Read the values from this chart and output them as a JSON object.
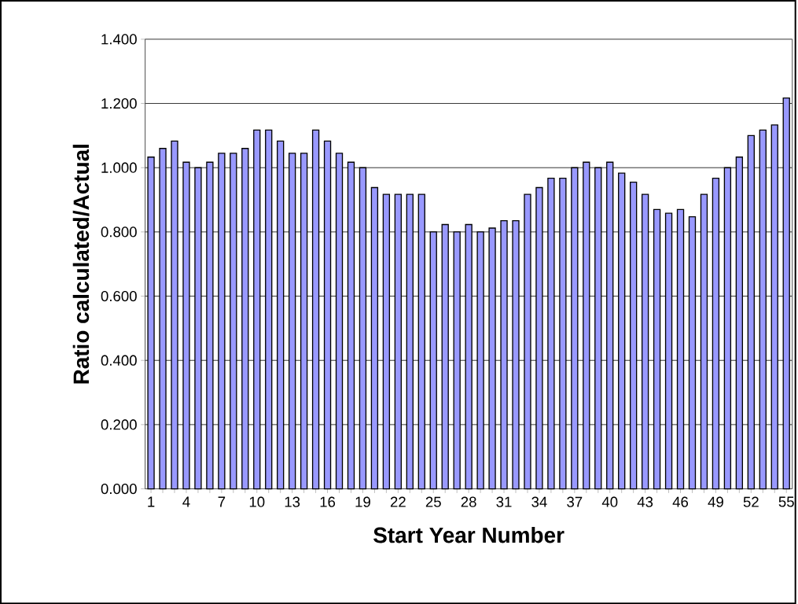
{
  "chart_data": {
    "type": "bar",
    "xlabel": "Start Year Number",
    "ylabel": "Ratio calculated/Actual",
    "categories": [
      "1",
      null,
      null,
      "4",
      null,
      null,
      "7",
      null,
      null,
      "10",
      null,
      null,
      "13",
      null,
      null,
      "16",
      null,
      null,
      "19",
      null,
      null,
      "22",
      null,
      null,
      "25",
      null,
      null,
      "28",
      null,
      null,
      "31",
      null,
      null,
      "34",
      null,
      null,
      "37",
      null,
      null,
      "40",
      null,
      null,
      "43",
      null,
      null,
      "46",
      null,
      null,
      "49",
      null,
      null,
      "52",
      null,
      null,
      "55"
    ],
    "values": [
      1.033,
      1.06,
      1.083,
      1.017,
      1.0,
      1.017,
      1.045,
      1.045,
      1.06,
      1.117,
      1.117,
      1.083,
      1.045,
      1.045,
      1.117,
      1.083,
      1.045,
      1.017,
      1.0,
      0.938,
      0.917,
      0.917,
      0.917,
      0.917,
      0.8,
      0.823,
      0.8,
      0.823,
      0.8,
      0.812,
      0.835,
      0.835,
      0.917,
      0.938,
      0.967,
      0.967,
      1.0,
      1.017,
      1.0,
      1.017,
      0.983,
      0.955,
      0.917,
      0.87,
      0.858,
      0.87,
      0.847,
      0.917,
      0.967,
      1.0,
      1.033,
      1.1,
      1.117,
      1.133,
      1.217
    ],
    "color": "#9999ff",
    "ylim": [
      0,
      1.4
    ],
    "yticks": [
      {
        "value": 0,
        "label": "0.000"
      },
      {
        "value": 0.2,
        "label": "0.200"
      },
      {
        "value": 0.4,
        "label": "0.400"
      },
      {
        "value": 0.6,
        "label": "0.600"
      },
      {
        "value": 0.8,
        "label": "0.800"
      },
      {
        "value": 1.0,
        "label": "1.000"
      },
      {
        "value": 1.2,
        "label": "1.200"
      },
      {
        "value": 1.4,
        "label": "1.400"
      }
    ],
    "grid": "y"
  }
}
